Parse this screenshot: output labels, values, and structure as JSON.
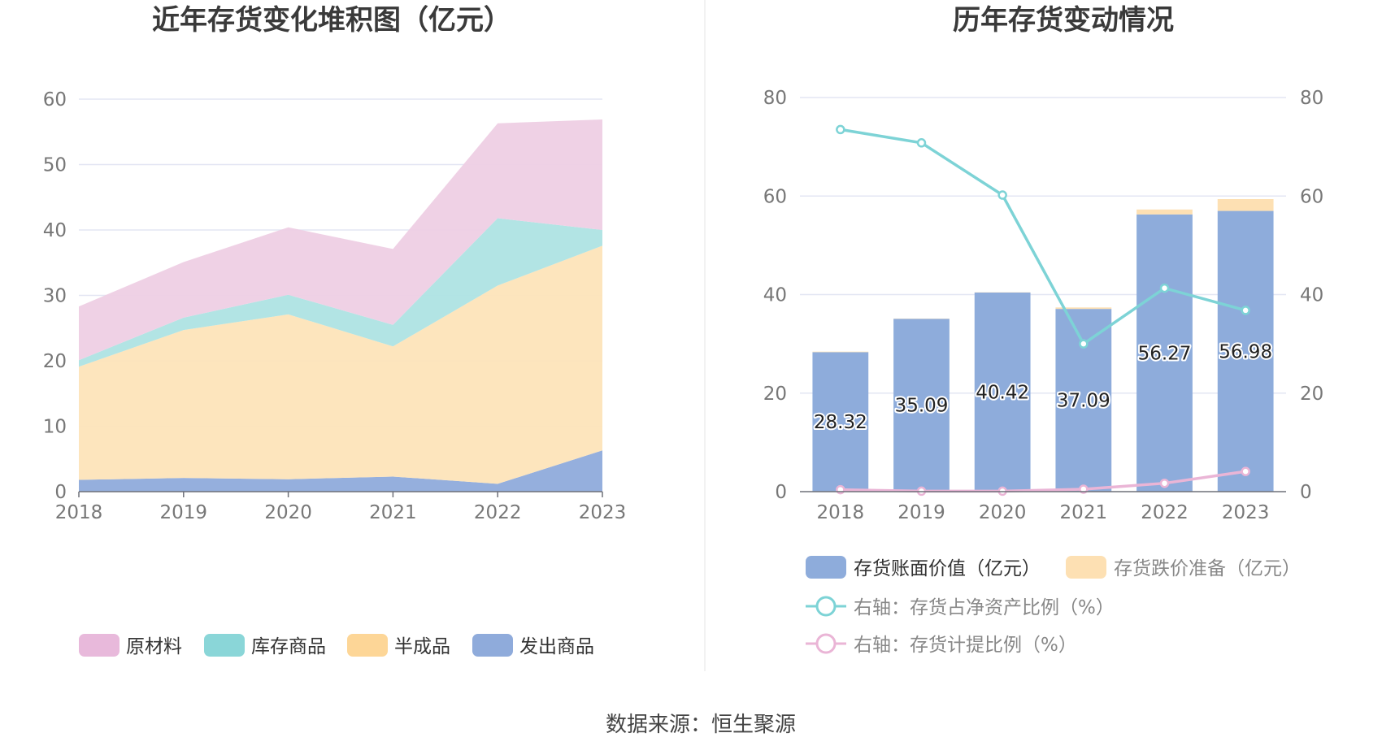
{
  "source": "数据来源：恒生聚源",
  "chart_data": [
    {
      "type": "area",
      "stacked": true,
      "title": "近年存货变化堆积图（亿元）",
      "categories": [
        "2018",
        "2019",
        "2020",
        "2021",
        "2022",
        "2023"
      ],
      "ylim": [
        0,
        60
      ],
      "yticks": [
        0,
        10,
        20,
        30,
        40,
        50,
        60
      ],
      "grid": true,
      "legend_position": "bottom",
      "series": [
        {
          "name": "发出商品",
          "color": "#8fabdb",
          "values": [
            1.8,
            2.1,
            1.9,
            2.3,
            1.2,
            6.3
          ]
        },
        {
          "name": "半成品",
          "color": "#fde4b9",
          "values": [
            17.3,
            22.6,
            25.2,
            19.9,
            30.3,
            31.3
          ]
        },
        {
          "name": "库存商品",
          "color": "#aee3e3",
          "values": [
            1.0,
            1.9,
            3.0,
            3.3,
            10.3,
            2.4
          ]
        },
        {
          "name": "原材料",
          "color": "#eecfe4",
          "values": [
            8.2,
            8.5,
            10.3,
            11.6,
            14.5,
            16.9
          ]
        }
      ],
      "legend": [
        {
          "name": "原材料",
          "color": "#e8b9db"
        },
        {
          "name": "库存商品",
          "color": "#8ad6d8"
        },
        {
          "name": "半成品",
          "color": "#fdd697"
        },
        {
          "name": "发出商品",
          "color": "#8fabdb"
        }
      ]
    },
    {
      "type": "bar",
      "title": "历年存货变动情况",
      "categories": [
        "2018",
        "2019",
        "2020",
        "2021",
        "2022",
        "2023"
      ],
      "ylim": [
        0,
        80
      ],
      "yticks": [
        0,
        20,
        40,
        60,
        80
      ],
      "y2lim": [
        0,
        80
      ],
      "y2ticks": [
        0,
        20,
        40,
        60,
        80
      ],
      "grid": true,
      "legend_position": "bottom",
      "series": [
        {
          "name": "存货账面价值（亿元）",
          "axis": "left",
          "kind": "bar",
          "color": "#8eacdb",
          "values": [
            28.32,
            35.09,
            40.42,
            37.09,
            56.27,
            56.98
          ],
          "labels": [
            "28.32",
            "35.09",
            "40.42",
            "37.09",
            "56.27",
            "56.98"
          ]
        },
        {
          "name": "存货跌价准备（亿元）",
          "axis": "left",
          "kind": "bar-stacked",
          "color": "#fde0b3",
          "values": [
            0.1,
            0.05,
            0.05,
            0.3,
            1.0,
            2.4
          ]
        },
        {
          "name": "右轴：存货占净资产比例（%）",
          "axis": "right",
          "kind": "line",
          "color": "#7dd3d6",
          "values": [
            73.5,
            70.8,
            60.2,
            30.0,
            41.3,
            36.8
          ]
        },
        {
          "name": "右轴：存货计提比例（%）",
          "axis": "right",
          "kind": "line",
          "color": "#eab5d6",
          "values": [
            0.4,
            0.1,
            0.1,
            0.5,
            1.7,
            4.1
          ]
        }
      ]
    }
  ]
}
